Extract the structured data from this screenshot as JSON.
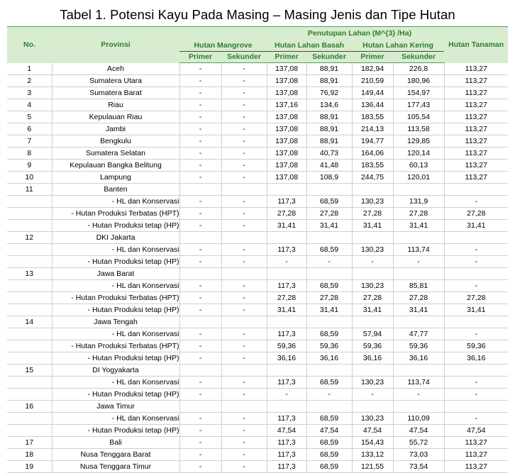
{
  "title": "Tabel 1. Potensi Kayu Pada Masing – Masing Jenis dan Tipe Hutan",
  "headers": {
    "no": "No.",
    "provinsi": "Provinsi",
    "penutupan": "Penutupan Lahan (M^{3} /Ha)",
    "mangrove": "Hutan Mangrove",
    "lahan_basah": "Hutan Lahan Basah",
    "lahan_kering": "Hutan Lahan Kering",
    "tanaman": "Hutan Tanaman",
    "primer": "Primer",
    "sekunder": "Sekunder"
  },
  "rows": [
    {
      "no": "1",
      "prov": "Aceh",
      "sub": false,
      "v": [
        "-",
        "-",
        "137,08",
        "88,91",
        "182,94",
        "226,8",
        "113,27"
      ]
    },
    {
      "no": "2",
      "prov": "Sumatera Utara",
      "sub": false,
      "v": [
        "-",
        "-",
        "137,08",
        "88,91",
        "210,59",
        "180,96",
        "113,27"
      ]
    },
    {
      "no": "3",
      "prov": "Sumatera Barat",
      "sub": false,
      "v": [
        "-",
        "-",
        "137,08",
        "76,92",
        "149,44",
        "154,97",
        "113,27"
      ]
    },
    {
      "no": "4",
      "prov": "Riau",
      "sub": false,
      "v": [
        "-",
        "-",
        "137,16",
        "134,6",
        "136,44",
        "177,43",
        "113,27"
      ]
    },
    {
      "no": "5",
      "prov": "Kepulauan Riau",
      "sub": false,
      "v": [
        "-",
        "-",
        "137,08",
        "88,91",
        "183,55",
        "105,54",
        "113,27"
      ]
    },
    {
      "no": "6",
      "prov": "Jambi",
      "sub": false,
      "v": [
        "-",
        "-",
        "137,08",
        "88,91",
        "214,13",
        "113,58",
        "113,27"
      ]
    },
    {
      "no": "7",
      "prov": "Bengkulu",
      "sub": false,
      "v": [
        "-",
        "-",
        "137,08",
        "88,91",
        "194,77",
        "129,85",
        "113,27"
      ]
    },
    {
      "no": "8",
      "prov": "Sumatera Selatan",
      "sub": false,
      "v": [
        "-",
        "-",
        "137,08",
        "40,73",
        "164,06",
        "120,14",
        "113,27"
      ]
    },
    {
      "no": "9",
      "prov": "Kepulauan Bangka Belitung",
      "sub": false,
      "v": [
        "-",
        "-",
        "137,08",
        "41,48",
        "183,55",
        "60,13",
        "113,27"
      ]
    },
    {
      "no": "10",
      "prov": "Lampung",
      "sub": false,
      "v": [
        "-",
        "-",
        "137,08",
        "108,9",
        "244,75",
        "120,01",
        "113,27"
      ]
    },
    {
      "no": "11",
      "prov": "Banten",
      "sub": false,
      "v": [
        "",
        "",
        "",
        "",
        "",
        "",
        ""
      ]
    },
    {
      "no": "",
      "prov": "- HL dan Konservasi",
      "sub": true,
      "v": [
        "-",
        "-",
        "117,3",
        "68,59",
        "130,23",
        "131,9",
        "-"
      ]
    },
    {
      "no": "",
      "prov": "- Hutan Produksi Terbatas (HPT)",
      "sub": true,
      "v": [
        "-",
        "-",
        "27,28",
        "27,28",
        "27,28",
        "27,28",
        "27,28"
      ]
    },
    {
      "no": "",
      "prov": "- Hutan Produksi tetap (HP)",
      "sub": true,
      "v": [
        "-",
        "-",
        "31,41",
        "31,41",
        "31,41",
        "31,41",
        "31,41"
      ]
    },
    {
      "no": "12",
      "prov": "DKI Jakarta",
      "sub": false,
      "v": [
        "",
        "",
        "",
        "",
        "",
        "",
        ""
      ]
    },
    {
      "no": "",
      "prov": "- HL dan Konservasi",
      "sub": true,
      "v": [
        "-",
        "-",
        "117,3",
        "68,59",
        "130,23",
        "113,74",
        "-"
      ]
    },
    {
      "no": "",
      "prov": "- Hutan Produksi tetap (HP)",
      "sub": true,
      "v": [
        "-",
        "-",
        "-",
        "-",
        "-",
        "-",
        "-"
      ]
    },
    {
      "no": "13",
      "prov": "Jawa Barat",
      "sub": false,
      "v": [
        "",
        "",
        "",
        "",
        "",
        "",
        ""
      ]
    },
    {
      "no": "",
      "prov": "- HL dan Konservasi",
      "sub": true,
      "v": [
        "-",
        "-",
        "117,3",
        "68,59",
        "130,23",
        "85,81",
        "-"
      ]
    },
    {
      "no": "",
      "prov": "- Hutan Produksi Terbatas (HPT)",
      "sub": true,
      "v": [
        "-",
        "-",
        "27,28",
        "27,28",
        "27,28",
        "27,28",
        "27,28"
      ]
    },
    {
      "no": "",
      "prov": "- Hutan Produksi tetap (HP)",
      "sub": true,
      "v": [
        "-",
        "-",
        "31,41",
        "31,41",
        "31,41",
        "31,41",
        "31,41"
      ]
    },
    {
      "no": "14",
      "prov": "Jawa Tengah",
      "sub": false,
      "v": [
        "",
        "",
        "",
        "",
        "",
        "",
        ""
      ]
    },
    {
      "no": "",
      "prov": "- HL dan Konservasi",
      "sub": true,
      "v": [
        "-",
        "-",
        "117,3",
        "68,59",
        "57,94",
        "47,77",
        "-"
      ]
    },
    {
      "no": "",
      "prov": "- Hutan Produksi Terbatas (HPT)",
      "sub": true,
      "v": [
        "-",
        "-",
        "59,36",
        "59,36",
        "59,36",
        "59,36",
        "59,36"
      ]
    },
    {
      "no": "",
      "prov": "- Hutan Produksi tetap (HP)",
      "sub": true,
      "v": [
        "-",
        "-",
        "36,16",
        "36,16",
        "36,16",
        "36,16",
        "36,16"
      ]
    },
    {
      "no": "15",
      "prov": "DI Yogyakarta",
      "sub": false,
      "v": [
        "",
        "",
        "",
        "",
        "",
        "",
        ""
      ]
    },
    {
      "no": "",
      "prov": "- HL dan Konservasi",
      "sub": true,
      "v": [
        "-",
        "-",
        "117,3",
        "68,59",
        "130,23",
        "113,74",
        "-"
      ]
    },
    {
      "no": "",
      "prov": "- Hutan Produksi tetap (HP)",
      "sub": true,
      "v": [
        "-",
        "-",
        "-",
        "-",
        "-",
        "-",
        "-"
      ]
    },
    {
      "no": "16",
      "prov": "Jawa Timur",
      "sub": false,
      "v": [
        "",
        "",
        "",
        "",
        "",
        "",
        ""
      ]
    },
    {
      "no": "",
      "prov": "- HL dan Konservasi",
      "sub": true,
      "v": [
        "-",
        "-",
        "117,3",
        "68,59",
        "130,23",
        "110,09",
        "-"
      ]
    },
    {
      "no": "",
      "prov": "- Hutan Produksi tetap (HP)",
      "sub": true,
      "v": [
        "-",
        "-",
        "47,54",
        "47,54",
        "47,54",
        "47,54",
        "47,54"
      ]
    },
    {
      "no": "17",
      "prov": "Bali",
      "sub": false,
      "v": [
        "-",
        "-",
        "117,3",
        "68,59",
        "154,43",
        "55,72",
        "113,27"
      ]
    },
    {
      "no": "18",
      "prov": "Nusa Tenggara Barat",
      "sub": false,
      "v": [
        "-",
        "-",
        "117,3",
        "68,59",
        "133,12",
        "73,03",
        "113,27"
      ]
    },
    {
      "no": "19",
      "prov": "Nusa Tenggara Timur",
      "sub": false,
      "v": [
        "-",
        "-",
        "117,3",
        "68,59",
        "121,55",
        "73,54",
        "113,27"
      ]
    }
  ]
}
